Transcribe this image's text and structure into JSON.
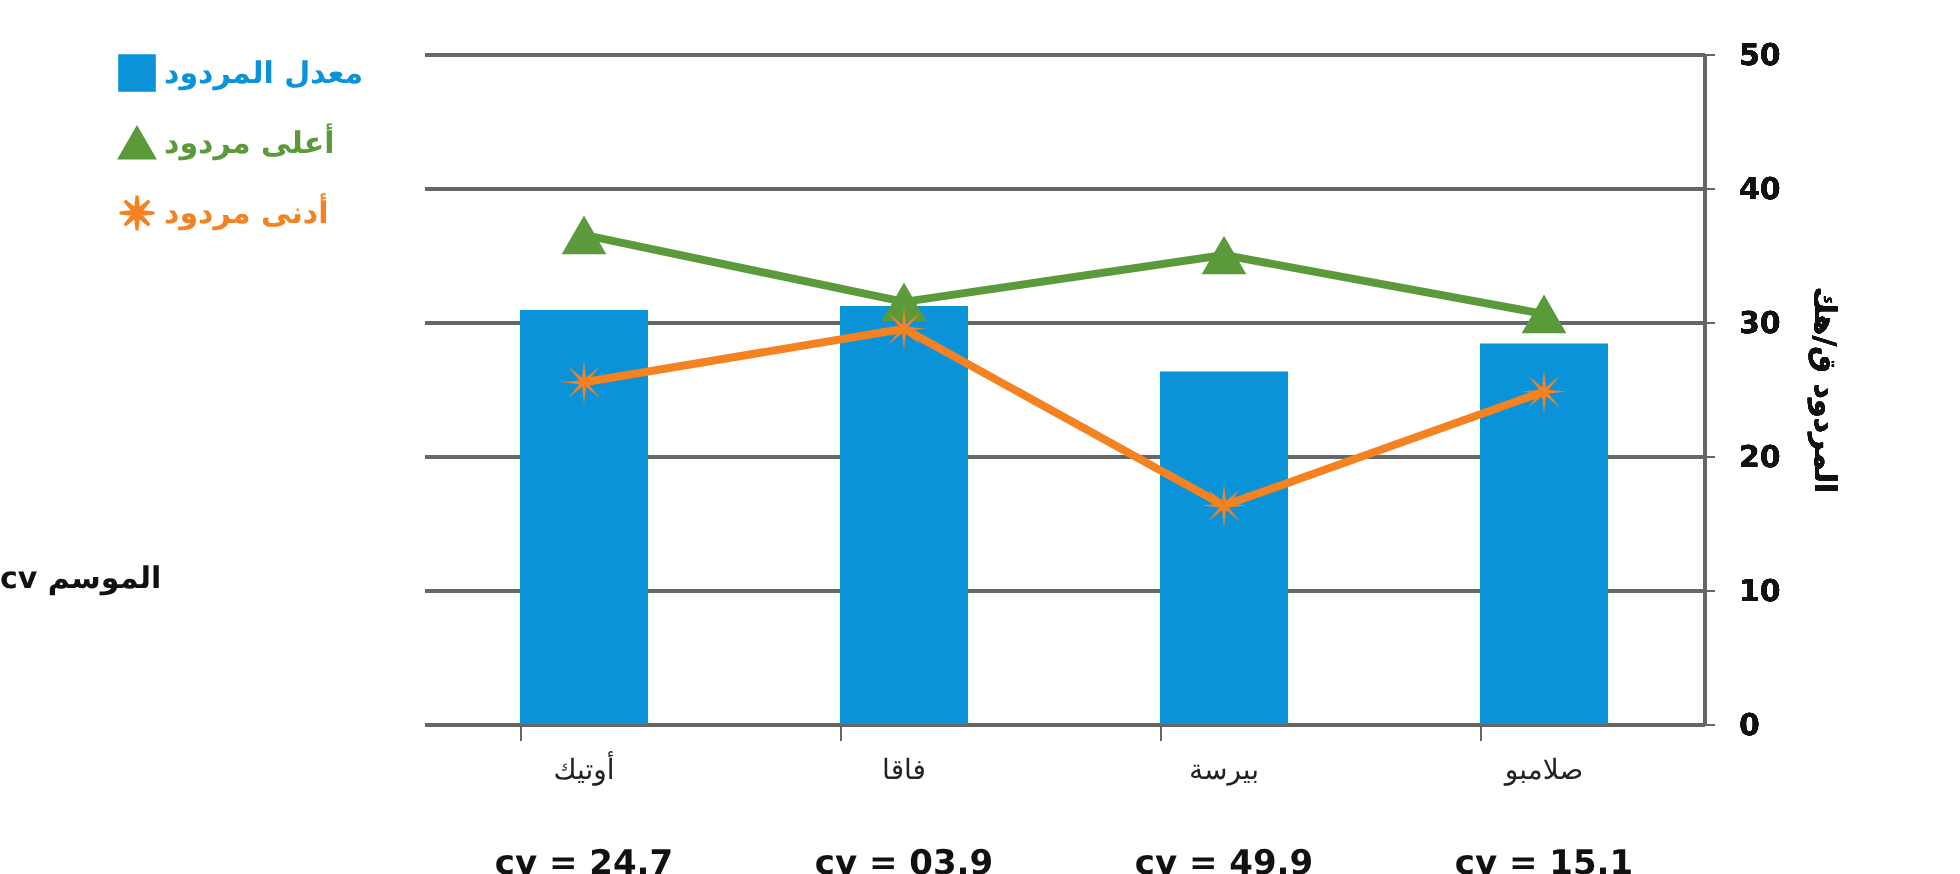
{
  "chart_data": {
    "type": "bar",
    "ylabel": "المردود ق/هك",
    "categories": [
      "أوتيك",
      "فاقا",
      "بيرسة",
      "صلامبو"
    ],
    "series": [
      {
        "name": "معدل المردود",
        "color": "#0a93d8",
        "values": [
          30.9,
          31.2,
          26.3,
          28.4
        ]
      },
      {
        "name": "أعلى مردود",
        "type": "line",
        "color": "#5a9a3a",
        "marker": "triangle",
        "values": [
          36.5,
          31.5,
          35.0,
          30.6
        ]
      },
      {
        "name": "أدنى مردود",
        "type": "line",
        "color": "#f58220",
        "marker": "star",
        "values": [
          25.5,
          29.5,
          16.3,
          24.8
        ]
      }
    ],
    "ylim": [
      0,
      50
    ],
    "yticks": [
      0,
      10,
      20,
      30,
      40,
      50
    ],
    "grid": "y",
    "legend": "left",
    "annotations": [
      "cv = 24.7",
      "cv = 03.9",
      "cv = 49.9",
      "cv = 15.1",
      "cv الموسم"
    ]
  }
}
